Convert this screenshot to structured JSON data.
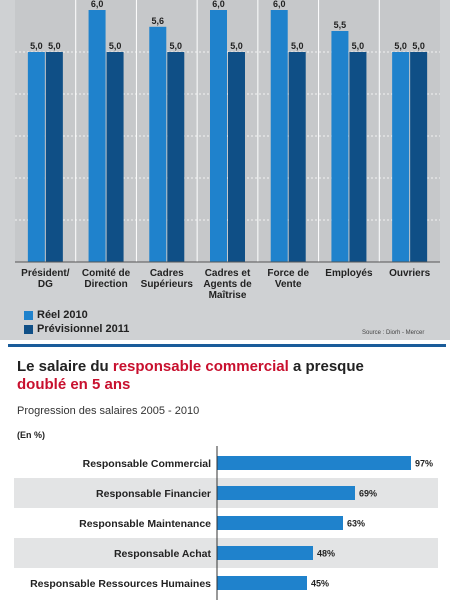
{
  "chart_data": [
    {
      "type": "bar",
      "categories": [
        "Président/\nDG",
        "Comité de\nDirection",
        "Cadres\nSupérieurs",
        "Cadres et\nAgents de\nMaîtrise",
        "Force de\nVente",
        "Employés",
        "Ouvriers"
      ],
      "series": [
        {
          "name": "Réel 2010",
          "values": [
            5.0,
            6.0,
            5.6,
            6.0,
            6.0,
            5.5,
            5.0
          ],
          "labels": [
            "5,0",
            "6,0",
            "5,6",
            "6,0",
            "6,0",
            "5,5",
            "5,0"
          ],
          "color": "#1f82cc"
        },
        {
          "name": "Prévisionnel 2011",
          "values": [
            5.0,
            5.0,
            5.0,
            5.0,
            5.0,
            5.0,
            5.0
          ],
          "labels": [
            "5,0",
            "5,0",
            "5,0",
            "5,0",
            "5,0",
            "5,0",
            "5,0"
          ],
          "color": "#0f4f86"
        }
      ],
      "ylim": [
        0,
        6.0
      ],
      "grid": true,
      "source": "Source : Diorh - Mercer"
    },
    {
      "type": "bar",
      "orientation": "horizontal",
      "title_parts": [
        {
          "text": "Le salaire du ",
          "highlight": false
        },
        {
          "text": "responsable commercial",
          "highlight": true
        },
        {
          "text": " a presque ",
          "highlight": false
        },
        {
          "text": "doublé en 5 ans",
          "highlight": true
        }
      ],
      "subtitle": "Progression des salaires 2005 - 2010",
      "unit": "(En %)",
      "categories": [
        "Responsable Commercial",
        "Responsable Financier",
        "Responsable Maintenance",
        "Responsable Achat",
        "Responsable Ressources Humaines"
      ],
      "values": [
        97,
        69,
        63,
        48,
        45
      ],
      "labels": [
        "97%",
        "69%",
        "63%",
        "48%",
        "45%"
      ],
      "xlim": [
        0,
        100
      ],
      "bar_color": "#1f82cc"
    }
  ],
  "colors": {
    "highlight": "#c8102e",
    "accent_rule": "#1a5c9a"
  }
}
